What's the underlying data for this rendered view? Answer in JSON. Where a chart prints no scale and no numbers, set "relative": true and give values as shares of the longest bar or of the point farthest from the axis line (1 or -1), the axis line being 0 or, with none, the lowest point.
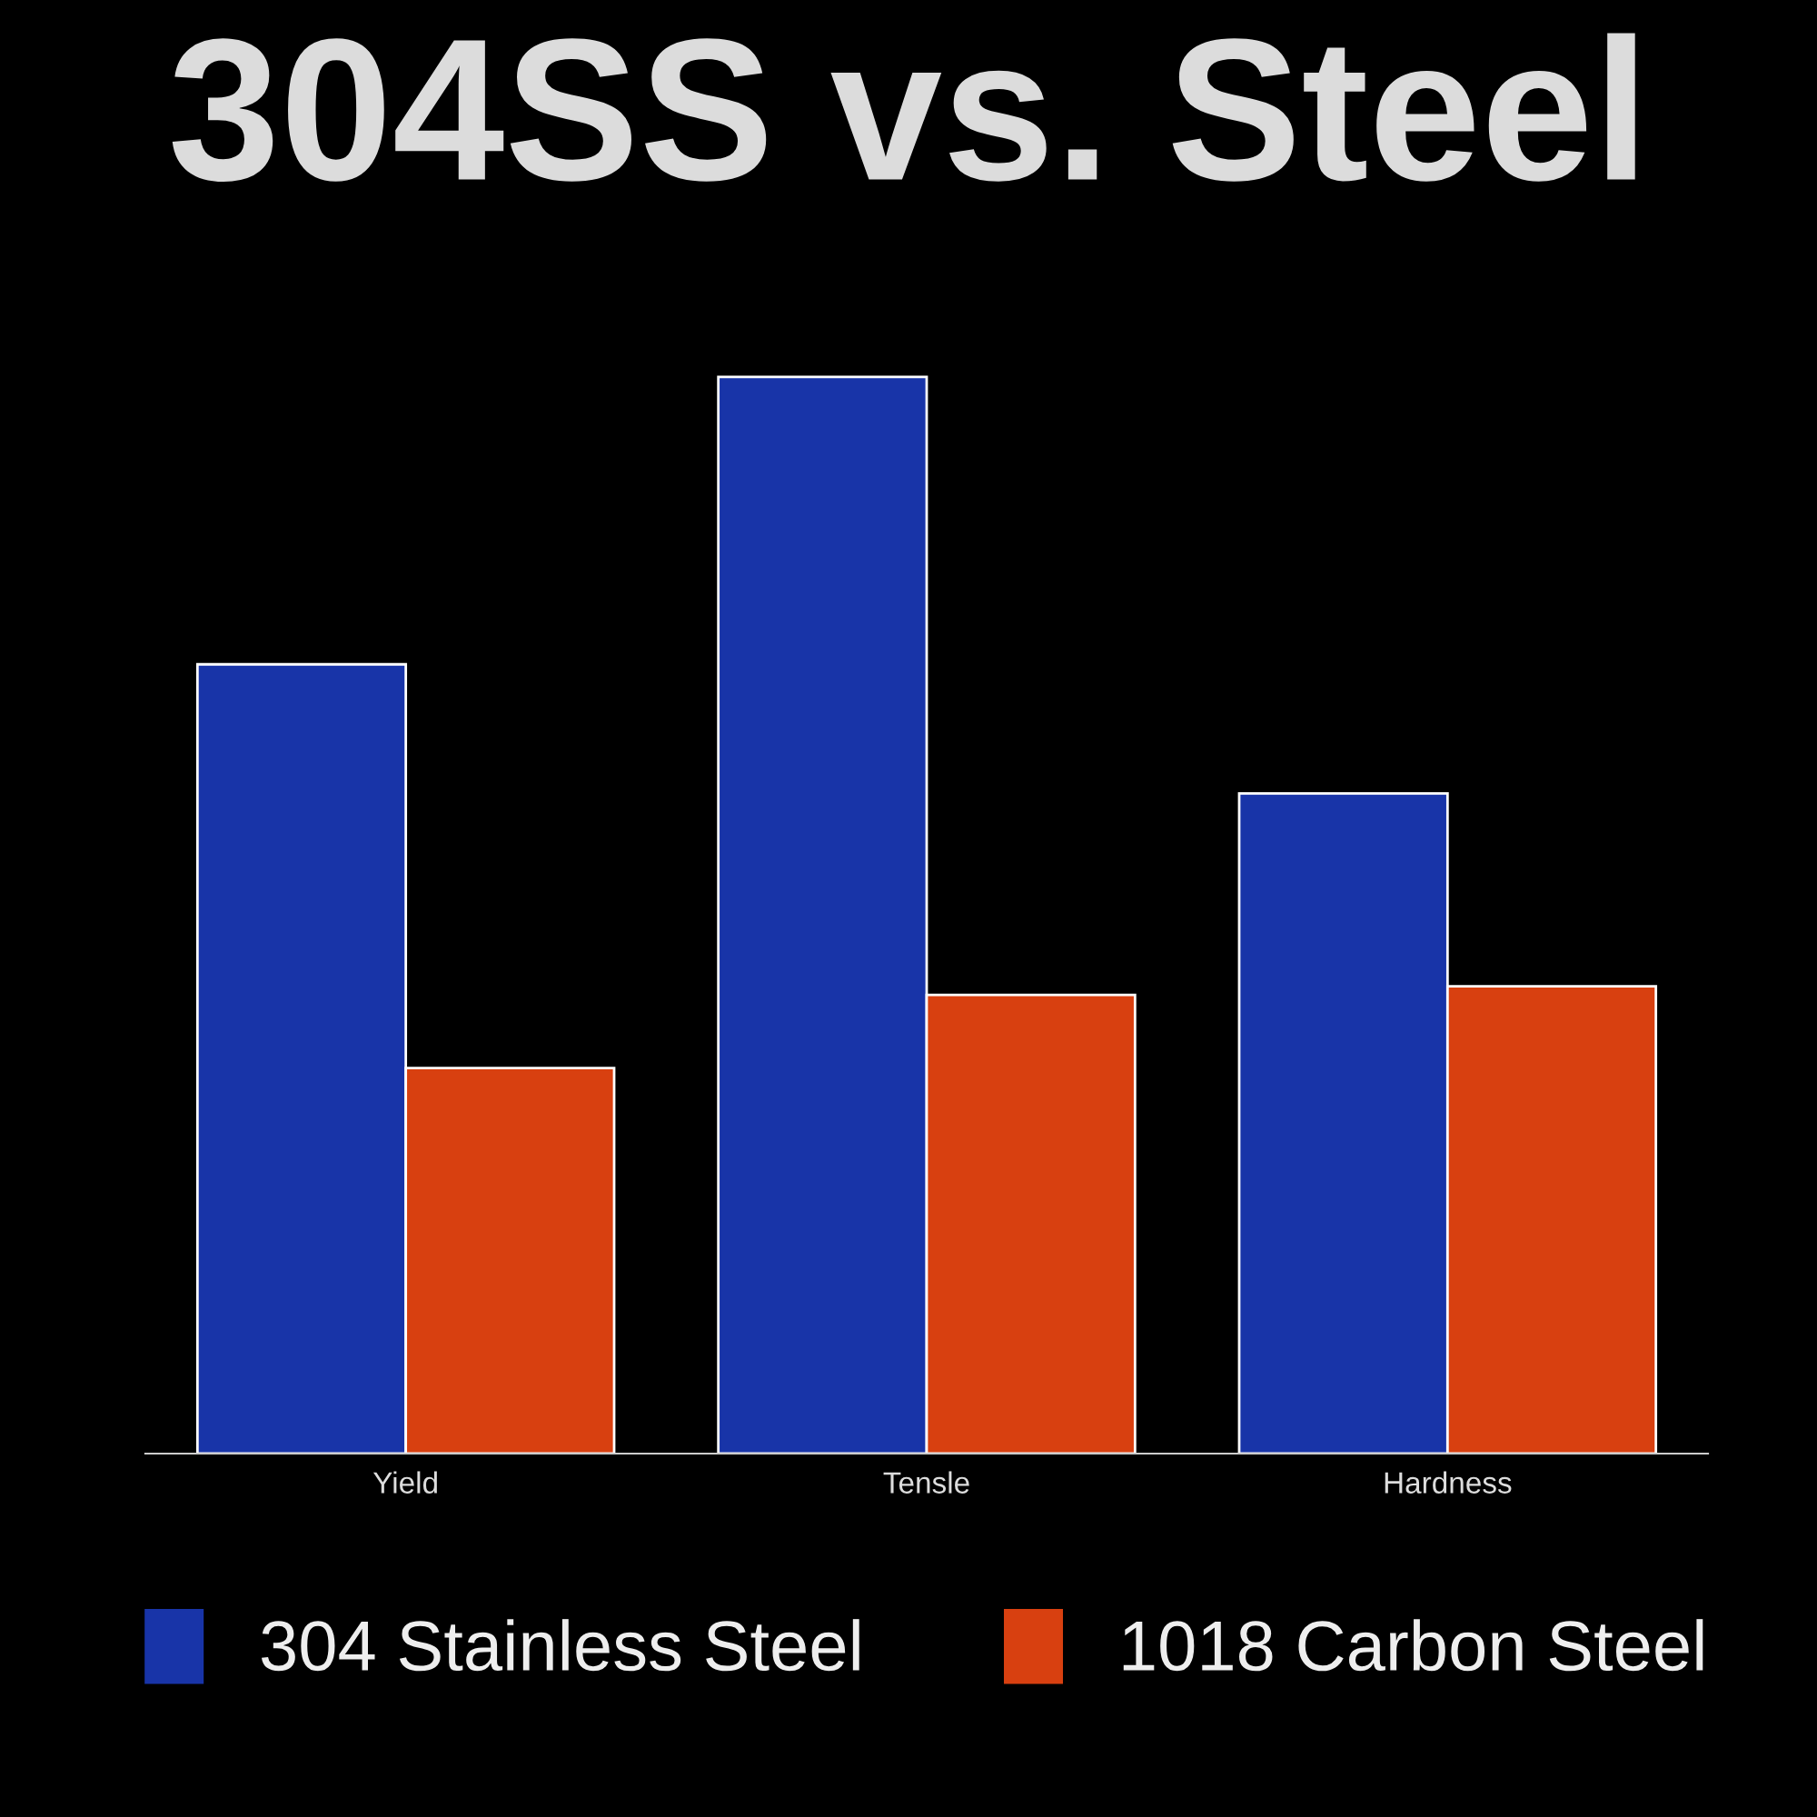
{
  "chart_data": {
    "type": "bar",
    "title": "304SS vs. Steel",
    "relative": true,
    "categories": [
      "Yield",
      "Tensle",
      "Hardness"
    ],
    "series": [
      {
        "name": "304 Stainless Steel",
        "color": "#1834a8",
        "values": [
          0.733,
          1,
          0.613
        ]
      },
      {
        "name": "1018 Carbon Steel",
        "color": "#d84010",
        "values": [
          0.358,
          0.426,
          0.434
        ]
      }
    ],
    "legend": "bottom"
  }
}
